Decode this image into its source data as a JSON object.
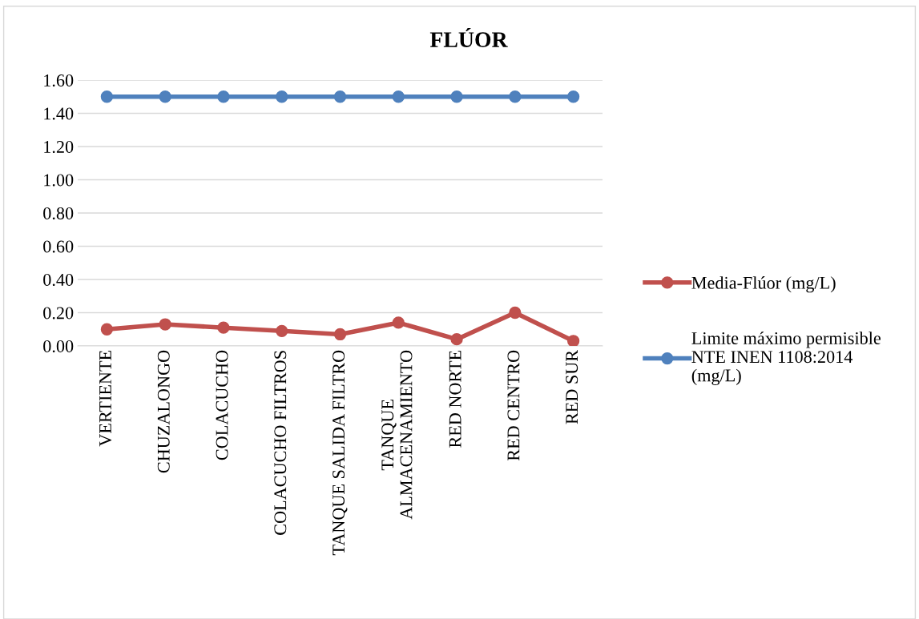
{
  "chart_data": {
    "type": "line",
    "title": "FLÚOR",
    "categories": [
      "VERTIENTE",
      "CHUZALONGO",
      "COLACUCHO",
      "COLACUCHO FILTROS",
      "TANQUE SALIDA FILTRO",
      "TANQUE\nALMACENAMIENTO",
      "RED NORTE",
      "RED CENTRO",
      "RED SUR"
    ],
    "series": [
      {
        "name": "Media-Flúor (mg/L)",
        "color": "#c0504d",
        "values": [
          0.1,
          0.13,
          0.11,
          0.09,
          0.07,
          0.14,
          0.04,
          0.2,
          0.03
        ]
      },
      {
        "name": "Limite máximo permisible NTE INEN 1108:2014 (mg/L)",
        "color": "#4f81bd",
        "values": [
          1.5,
          1.5,
          1.5,
          1.5,
          1.5,
          1.5,
          1.5,
          1.5,
          1.5
        ]
      }
    ],
    "ylim": [
      0,
      1.6
    ],
    "yticks": [
      {
        "value": 0,
        "label": "0.00"
      },
      {
        "value": 0.2,
        "label": "0.20"
      },
      {
        "value": 0.4,
        "label": "0.40"
      },
      {
        "value": 0.6,
        "label": "0.60"
      },
      {
        "value": 0.8,
        "label": "0.80"
      },
      {
        "value": 1.0,
        "label": "1.00"
      },
      {
        "value": 1.2,
        "label": "1.20"
      },
      {
        "value": 1.4,
        "label": "1.40"
      },
      {
        "value": 1.6,
        "label": "1.60"
      }
    ],
    "grid": "y",
    "legend": "right",
    "marker": "circle",
    "line_style": "solid"
  }
}
